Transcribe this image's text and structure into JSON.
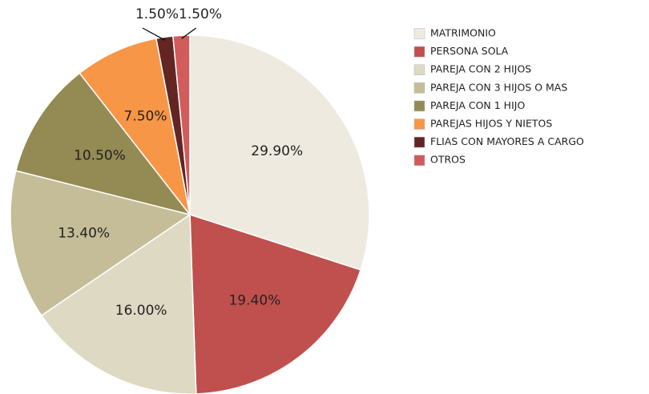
{
  "chart_data": {
    "type": "pie",
    "categories": [
      "MATRIMONIO",
      "PERSONA SOLA",
      "PAREJA CON 2 HIJOS",
      "PAREJA CON 3 HIJOS O MAS",
      "PAREJA CON 1 HIJO",
      "PAREJAS HIJOS Y NIETOS",
      "FLIAS CON MAYORES A CARGO",
      "OTROS"
    ],
    "values": [
      29.9,
      19.4,
      16.0,
      13.4,
      10.5,
      7.5,
      1.5,
      1.5
    ],
    "value_labels": [
      "29.90%",
      "19.40%",
      "16.00%",
      "13.40%",
      "10.50%",
      "7.50%",
      "1.50%",
      "1.50%"
    ],
    "colors": [
      "#eeeadf",
      "#c0504d",
      "#ddd9c3",
      "#c4bd97",
      "#948a54",
      "#f79646",
      "#632523",
      "#d25b5b"
    ],
    "legend": "right"
  }
}
